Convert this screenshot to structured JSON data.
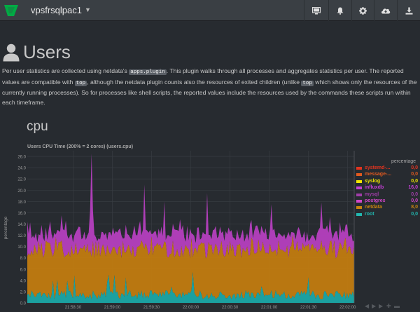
{
  "navbar": {
    "hostname": "vpsfrsqlpac1",
    "icons": [
      "monitor-icon",
      "bell-icon",
      "gear-icon",
      "cloud-download-icon",
      "download-icon"
    ]
  },
  "header": {
    "title": "Users",
    "intro": {
      "t1": "Per user statistics are collected using netdata's ",
      "c1": "apps.plugin",
      "t2": ". This plugin walks through all processes and aggregates statistics per user. The reported values are compatible with ",
      "c2": "top",
      "t3": ", although the netdata plugin counts also the resources of exited children (unlike ",
      "c3": "top",
      "t4": " which shows only the resources of the currently running processes). So for processes like shell scripts, the reported values include the resources used by the commands these scripts run within each timeframe."
    }
  },
  "section": {
    "title": "cpu"
  },
  "chart_data": {
    "type": "area",
    "stacked": true,
    "title": "Users CPU Time (200% = 2 cores) (users.cpu)",
    "ylabel": "percentage",
    "unit": "percentage",
    "ylim": [
      0,
      27
    ],
    "yticks": [
      "0.0",
      "2.0",
      "4.0",
      "6.0",
      "8.0",
      "10.0",
      "12.0",
      "14.0",
      "16.0",
      "18.0",
      "20.0",
      "22.0",
      "24.0",
      "26.0"
    ],
    "xticks": [
      "21:58:30",
      "21:59:00",
      "21:59:30",
      "22:00:00",
      "22:00:30",
      "22:01:00",
      "22:01:30",
      "22:02:00"
    ],
    "grid": true,
    "legend_position": "right",
    "colors": {
      "root": "#1aa7a6",
      "netdata": "#c17b10",
      "influxdb": "#b53fbf",
      "background": "#272b30",
      "grid": "#3a3f44"
    },
    "series": [
      {
        "name": "systemd-...",
        "color": "#e2341f",
        "value": "0,0"
      },
      {
        "name": "message-...",
        "color": "#e25a1f",
        "value": "0,0"
      },
      {
        "name": "syslog",
        "color": "#f1e400",
        "value": "0,0"
      },
      {
        "name": "influxdb",
        "color": "#c23fd4",
        "value": "16,0"
      },
      {
        "name": "mysql",
        "color": "#a03da8",
        "value": "0,0"
      },
      {
        "name": "postgres",
        "color": "#d146c8",
        "value": "0,0"
      },
      {
        "name": "netdata",
        "color": "#c8840f",
        "value": "8,0"
      },
      {
        "name": "root",
        "color": "#22b8b0",
        "value": "0,0"
      }
    ],
    "stack_summary": {
      "root_typical": 1.8,
      "netdata_typical_top": 9.5,
      "influxdb_typical_top": 11.5,
      "peak_max": 26.5,
      "peaks": [
        {
          "t": "21:58:44",
          "v": 26.5
        },
        {
          "t": "21:59:25",
          "v": 21.0
        },
        {
          "t": "21:59:40",
          "v": 18.0
        },
        {
          "t": "22:00:13",
          "v": 19.5
        },
        {
          "t": "22:01:02",
          "v": 17.5
        },
        {
          "t": "22:01:40",
          "v": 17.8
        },
        {
          "t": "21:58:12",
          "v": 14.5
        }
      ]
    }
  }
}
